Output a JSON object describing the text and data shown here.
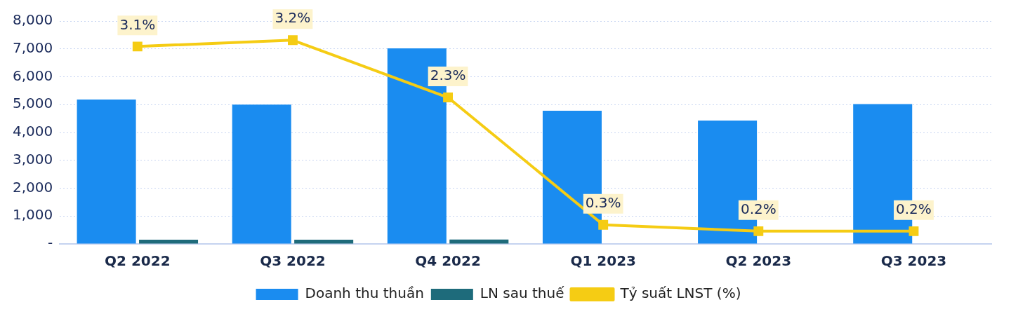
{
  "chart_data": {
    "type": "bar",
    "categories": [
      "Q2 2022",
      "Q3 2022",
      "Q4 2022",
      "Q1 2023",
      "Q2 2023",
      "Q3 2023"
    ],
    "series": [
      {
        "name": "Doanh thu thuần",
        "color": "#1a8cf0",
        "values": [
          5180,
          5000,
          7020,
          4780,
          4430,
          5020
        ]
      },
      {
        "name": "LN sau thuế",
        "color": "#1e6b7b",
        "values": [
          150,
          150,
          160,
          null,
          null,
          null
        ]
      },
      {
        "name": "Tỷ suất LNST (%)",
        "type": "line",
        "axis": "y2",
        "color": "#f5cc14",
        "marker": "square",
        "values": [
          3.1,
          3.2,
          2.3,
          0.3,
          0.2,
          0.2
        ],
        "value_labels": [
          "3.1%",
          "3.2%",
          "2.3%",
          "0.3%",
          "0.2%",
          "0.2%"
        ]
      }
    ],
    "ylim": [
      0,
      8000
    ],
    "yticks": [
      {
        "value": 0,
        "label": "-"
      },
      {
        "value": 1000,
        "label": "1,000"
      },
      {
        "value": 2000,
        "label": "2,000"
      },
      {
        "value": 3000,
        "label": "3,000"
      },
      {
        "value": 4000,
        "label": "4,000"
      },
      {
        "value": 5000,
        "label": "5,000"
      },
      {
        "value": 6000,
        "label": "6,000"
      },
      {
        "value": 7000,
        "label": "7,000"
      },
      {
        "value": 8000,
        "label": "8,000"
      }
    ],
    "y2lim": [
      0,
      3.5
    ],
    "tick_labels": "xy",
    "grid": "y",
    "legend": "bottom"
  }
}
